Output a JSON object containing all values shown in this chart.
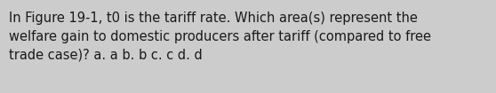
{
  "text": "In Figure 19-1, t0 is the tariff rate. Which area(s) represent the\nwelfare gain to domestic producers after tariff (compared to free\ntrade case)? a. a b. b c. c d. d",
  "background_color": "#cccccc",
  "text_color": "#1a1a1a",
  "font_size": 10.5,
  "font_weight": "normal",
  "fig_width": 5.58,
  "fig_height": 1.05,
  "dpi": 100
}
